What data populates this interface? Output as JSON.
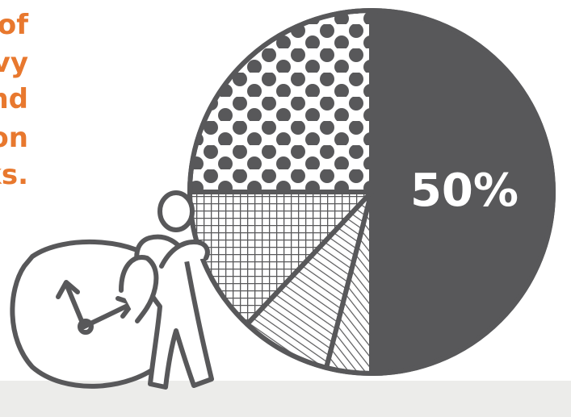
{
  "caption_lines": [
    "of",
    "vy",
    "nd",
    "on",
    "ks."
  ],
  "colors": {
    "caption": "#e8782e",
    "ink": "#58585a",
    "paper": "#ffffff",
    "floor": "#ececea"
  },
  "chart_data": {
    "type": "pie",
    "title": "",
    "slices": [
      {
        "value": 50,
        "fill": "solid-dark",
        "label": "50%"
      },
      {
        "value": 4,
        "fill": "diagonal-hatch"
      },
      {
        "value": 8,
        "fill": "diagonal-hatch"
      },
      {
        "value": 13,
        "fill": "crosshatch-grid"
      },
      {
        "value": 25,
        "fill": "dots"
      }
    ],
    "start": "12 o'clock",
    "direction": "clockwise",
    "legend": "none"
  },
  "illustration": {
    "figure": "stick-figure-pushing-pie",
    "object": "clock"
  }
}
